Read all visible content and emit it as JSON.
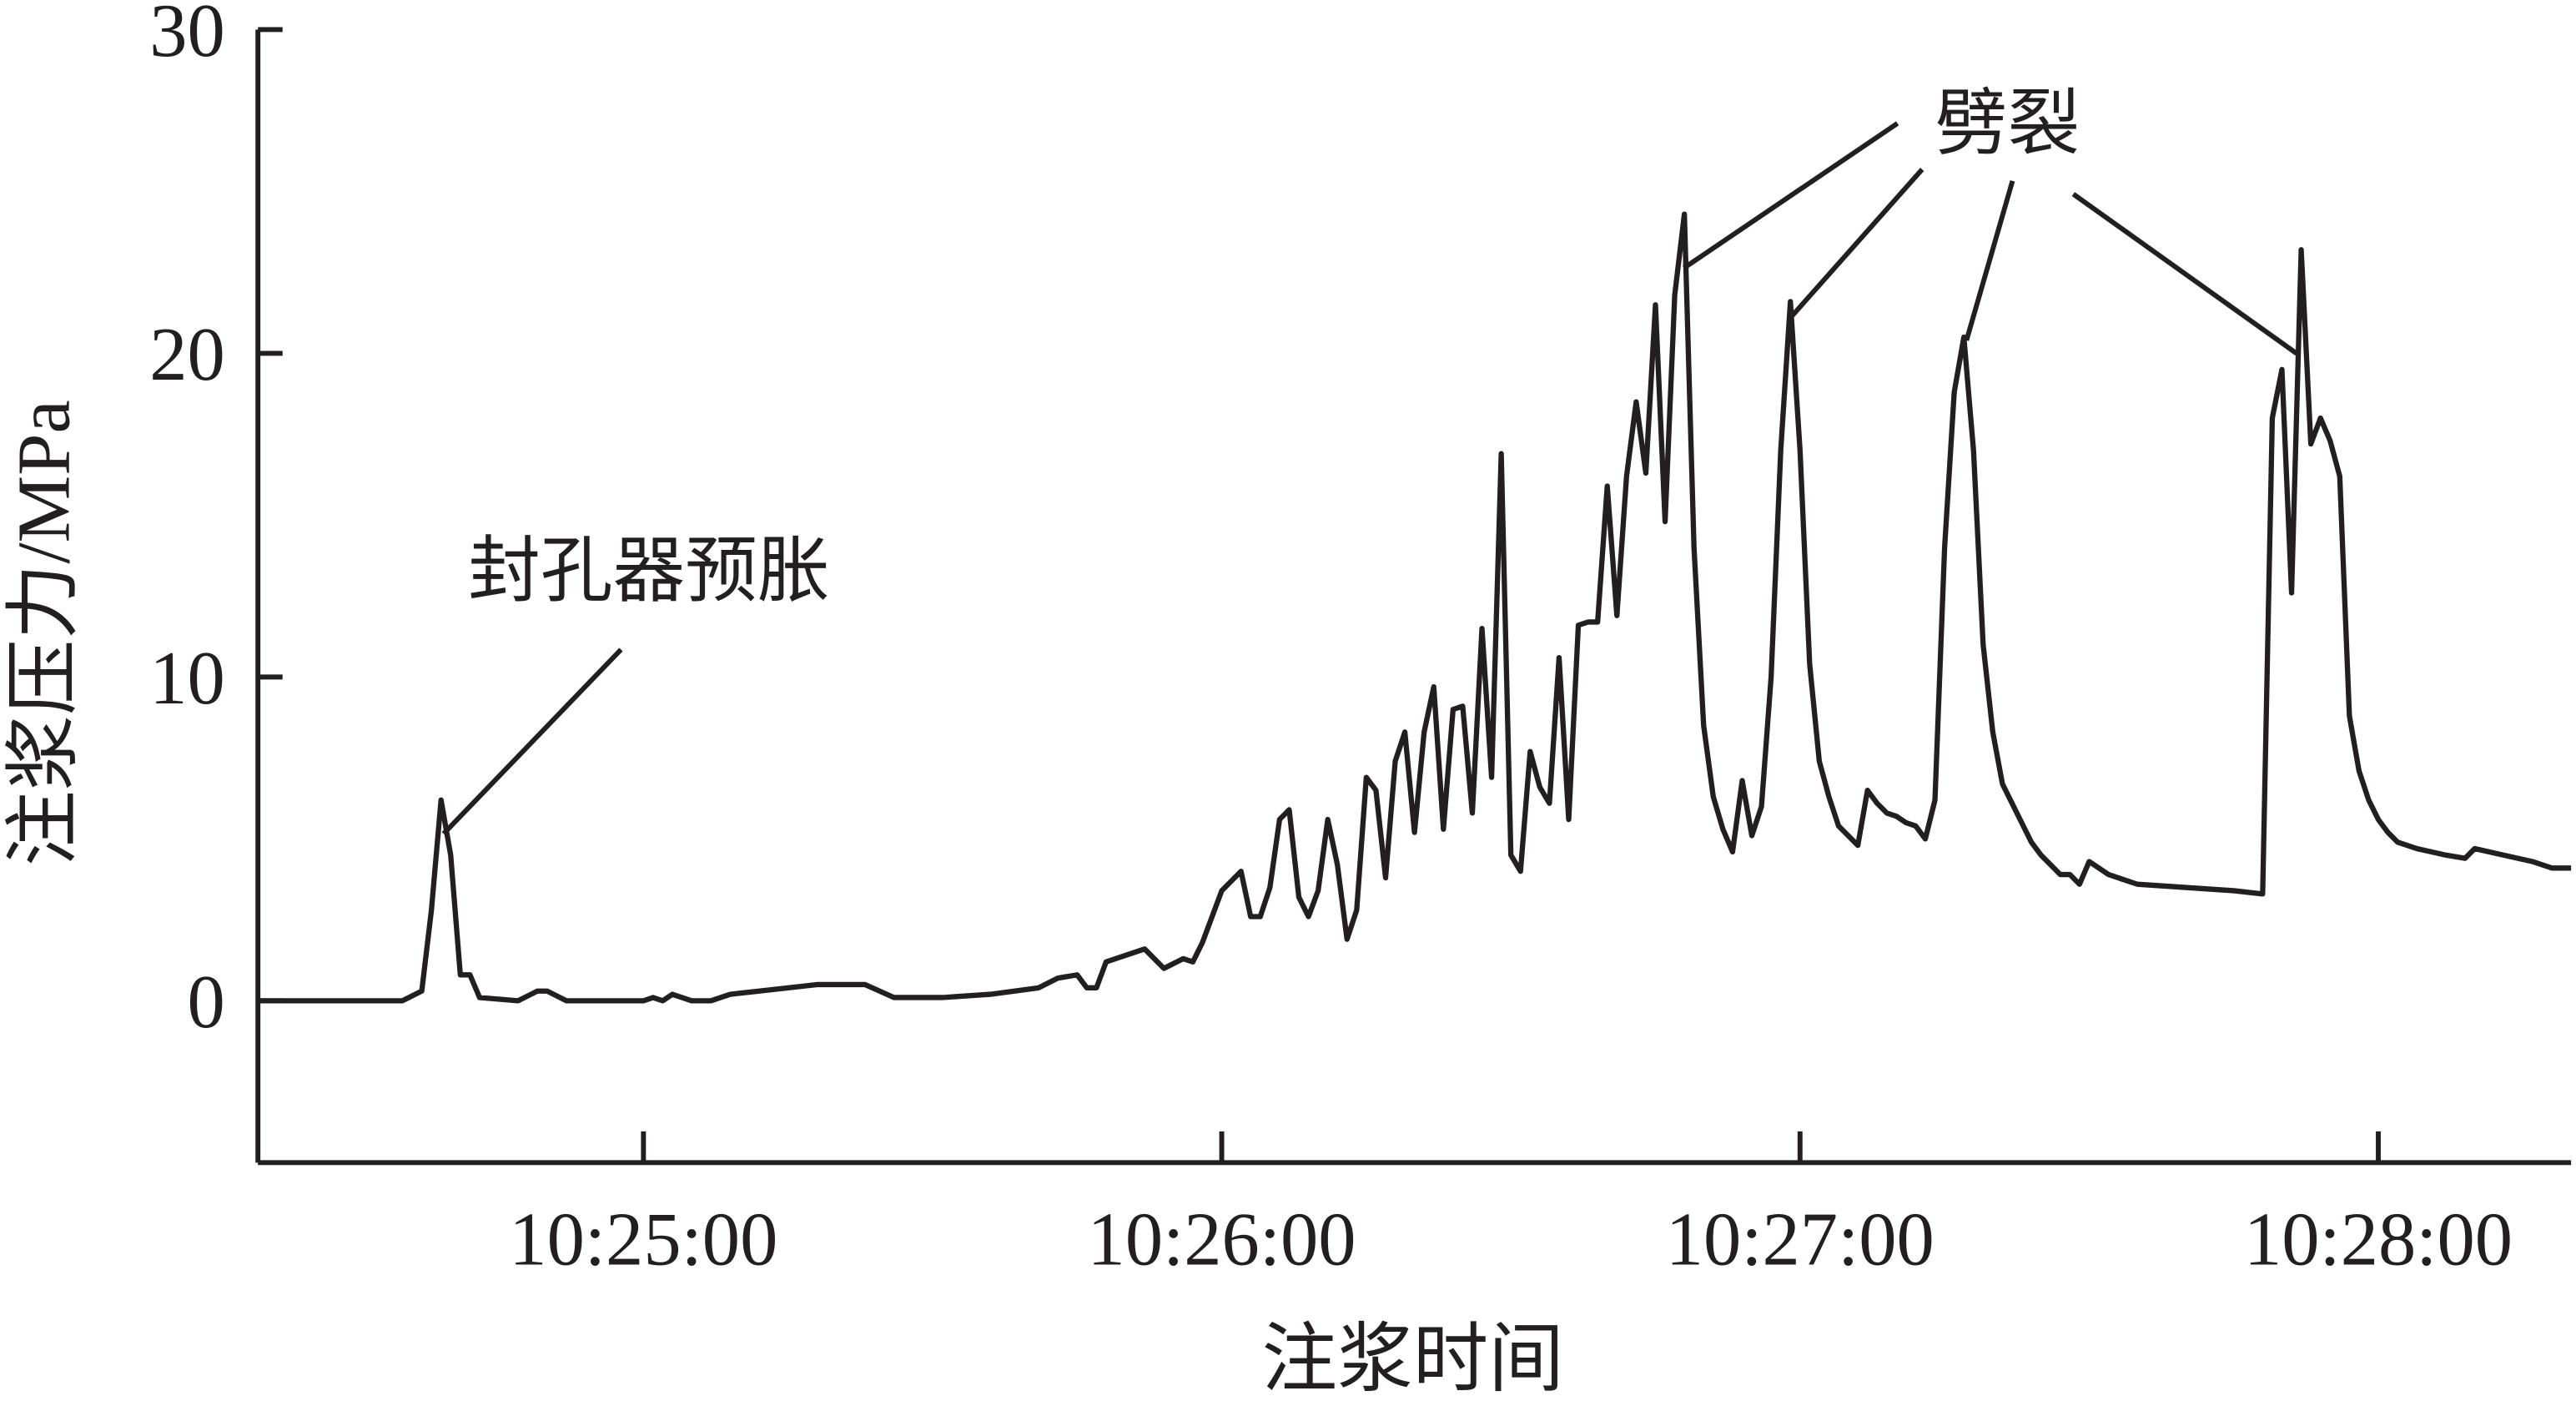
{
  "chart_data": {
    "type": "line",
    "x_label": "注浆时间",
    "y_label": "注浆压力/MPa",
    "annotations": [
      "封孔器预胀",
      "劈裂"
    ],
    "xlim": [
      "10:24:20",
      "10:28:20"
    ],
    "xticks": [
      "10:25:00",
      "10:26:00",
      "10:27:00",
      "10:28:00"
    ],
    "ylim": [
      -5,
      30
    ],
    "yticks": [
      0,
      10,
      20,
      30
    ],
    "grid": false,
    "x": [
      "10:24:20",
      "10:24:35",
      "10:24:37",
      "10:24:38",
      "10:24:39",
      "10:24:40",
      "10:24:41",
      "10:24:42",
      "10:24:43",
      "10:24:47",
      "10:24:49",
      "10:24:50",
      "10:24:52",
      "10:25:00",
      "10:25:01",
      "10:25:02",
      "10:25:03",
      "10:25:05",
      "10:25:07",
      "10:25:09",
      "10:25:12",
      "10:25:18",
      "10:25:23",
      "10:25:26",
      "10:25:31",
      "10:25:36",
      "10:25:41",
      "10:25:43",
      "10:25:45",
      "10:25:46",
      "10:25:47",
      "10:25:48",
      "10:25:52",
      "10:25:54",
      "10:25:56",
      "10:25:57",
      "10:25:58",
      "10:26:00",
      "10:26:02",
      "10:26:03",
      "10:26:04",
      "10:26:05",
      "10:26:06",
      "10:26:07",
      "10:26:08",
      "10:26:09",
      "10:26:10",
      "10:26:11",
      "10:26:12",
      "10:26:13",
      "10:26:14",
      "10:26:15",
      "10:26:16",
      "10:26:17",
      "10:26:18",
      "10:26:19",
      "10:26:20",
      "10:26:21",
      "10:26:22",
      "10:26:23",
      "10:26:24",
      "10:26:25",
      "10:26:26",
      "10:26:27",
      "10:26:28",
      "10:26:29",
      "10:26:30",
      "10:26:31",
      "10:26:32",
      "10:26:33",
      "10:26:34",
      "10:26:35",
      "10:26:36",
      "10:26:37",
      "10:26:38",
      "10:26:39",
      "10:26:40",
      "10:26:41",
      "10:26:42",
      "10:26:43",
      "10:26:44",
      "10:26:45",
      "10:26:46",
      "10:26:47",
      "10:26:48",
      "10:26:49",
      "10:26:50",
      "10:26:51",
      "10:26:52",
      "10:26:53",
      "10:26:54",
      "10:26:55",
      "10:26:56",
      "10:26:57",
      "10:26:58",
      "10:26:59",
      "10:27:00",
      "10:27:01",
      "10:27:02",
      "10:27:03",
      "10:27:04",
      "10:27:05",
      "10:27:06",
      "10:27:07",
      "10:27:08",
      "10:27:09",
      "10:27:10",
      "10:27:11",
      "10:27:12",
      "10:27:13",
      "10:27:14",
      "10:27:15",
      "10:27:16",
      "10:27:17",
      "10:27:18",
      "10:27:19",
      "10:27:20",
      "10:27:21",
      "10:27:22",
      "10:27:23",
      "10:27:24",
      "10:27:25",
      "10:27:26",
      "10:27:27",
      "10:27:28",
      "10:27:29",
      "10:27:30",
      "10:27:32",
      "10:27:35",
      "10:27:40",
      "10:27:45",
      "10:27:48",
      "10:27:49",
      "10:27:50",
      "10:27:51",
      "10:27:52",
      "10:27:53",
      "10:27:54",
      "10:27:55",
      "10:27:56",
      "10:27:57",
      "10:27:58",
      "10:27:59",
      "10:28:00",
      "10:28:01",
      "10:28:02",
      "10:28:04",
      "10:28:07",
      "10:28:09",
      "10:28:10",
      "10:28:13",
      "10:28:16",
      "10:28:18",
      "10:28:20"
    ],
    "series": [
      {
        "name": "注浆压力",
        "color": "#231f20",
        "values": [
          0,
          0,
          0.3,
          2.8,
          6.2,
          4.5,
          0.8,
          0.8,
          0.1,
          0,
          0.3,
          0.3,
          0,
          0,
          0.1,
          0,
          0.2,
          0,
          0,
          0.2,
          0.3,
          0.5,
          0.5,
          0.1,
          0.1,
          0.2,
          0.4,
          0.7,
          0.8,
          0.4,
          0.4,
          1.2,
          1.6,
          1.0,
          1.3,
          1.2,
          1.8,
          3.4,
          4.0,
          2.6,
          2.6,
          3.5,
          5.6,
          5.9,
          3.2,
          2.6,
          3.4,
          5.6,
          4.2,
          1.9,
          2.8,
          6.9,
          6.5,
          3.8,
          7.4,
          8.3,
          5.2,
          8.3,
          9.7,
          5.3,
          9.0,
          9.1,
          5.8,
          11.5,
          6.9,
          16.9,
          4.5,
          4.0,
          7.7,
          6.6,
          6.1,
          10.6,
          5.6,
          11.6,
          11.7,
          11.7,
          15.9,
          11.9,
          16.2,
          18.5,
          16.3,
          21.5,
          14.8,
          21.8,
          24.3,
          14,
          8.5,
          6.3,
          5.3,
          4.6,
          6.8,
          5.1,
          6.0,
          10,
          17,
          21.6,
          17,
          10.4,
          7.4,
          6.3,
          5.4,
          5.1,
          4.8,
          6.5,
          6.1,
          5.8,
          5.7,
          5.5,
          5.4,
          5.0,
          6.2,
          14,
          18.8,
          20.5,
          17,
          11,
          8.3,
          6.7,
          6.1,
          5.5,
          4.9,
          4.5,
          4.2,
          3.9,
          3.9,
          3.6,
          4.3,
          3.9,
          3.6,
          3.5,
          3.4,
          3.3,
          18.0,
          19.5,
          12.6,
          23.2,
          17.2,
          18.0,
          17.3,
          16.2,
          8.8,
          7.1,
          6.2,
          5.6,
          5.2,
          4.9,
          4.7,
          4.5,
          4.4,
          4.7,
          4.5,
          4.3,
          4.1,
          4.1
        ]
      }
    ]
  }
}
